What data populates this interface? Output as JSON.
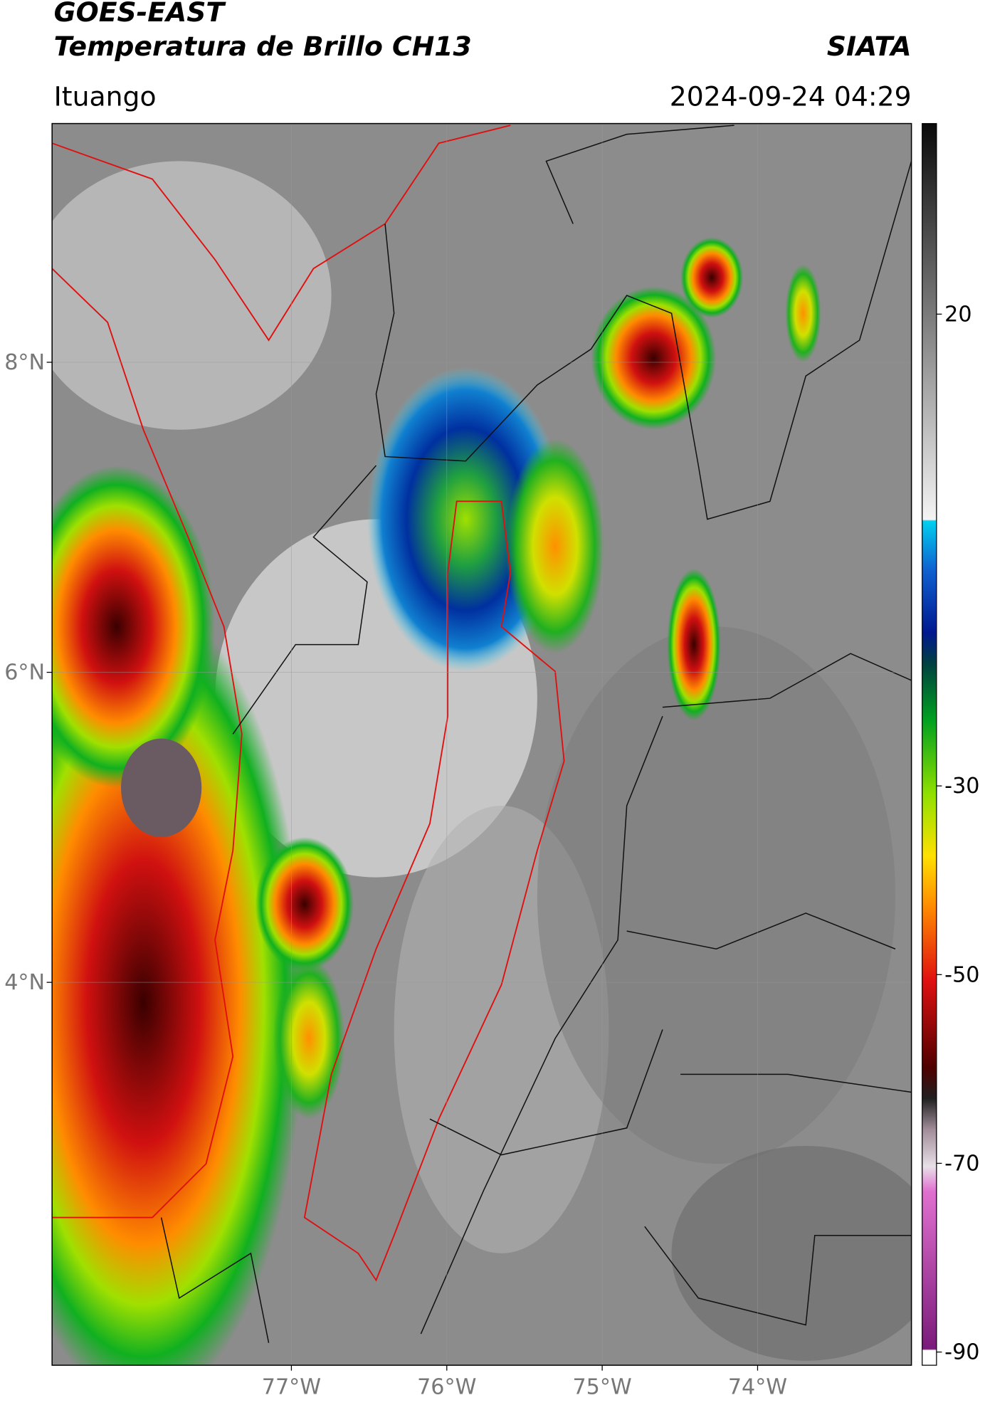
{
  "header": {
    "satellite": "GOES-EAST",
    "product": "Temperatura de Brillo CH13",
    "agency": "SIATA",
    "region": "Ituango",
    "datetime": "2024-09-24 04:29"
  },
  "map": {
    "xlim": [
      -78.54,
      -73.01
    ],
    "ylim": [
      1.53,
      9.54
    ],
    "xticks": [
      {
        "value": -77,
        "label": "77°W"
      },
      {
        "value": -76,
        "label": "76°W"
      },
      {
        "value": -75,
        "label": "75°W"
      },
      {
        "value": -74,
        "label": "74°W"
      }
    ],
    "yticks": [
      {
        "value": 8,
        "label": "8°N"
      },
      {
        "value": 6,
        "label": "6°N"
      },
      {
        "value": 4,
        "label": "4°N"
      }
    ],
    "grid": true
  },
  "colorbar": {
    "clim": [
      -91.4,
      40.2
    ],
    "ticks": [
      20,
      -30,
      -50,
      -70,
      -90
    ]
  }
}
